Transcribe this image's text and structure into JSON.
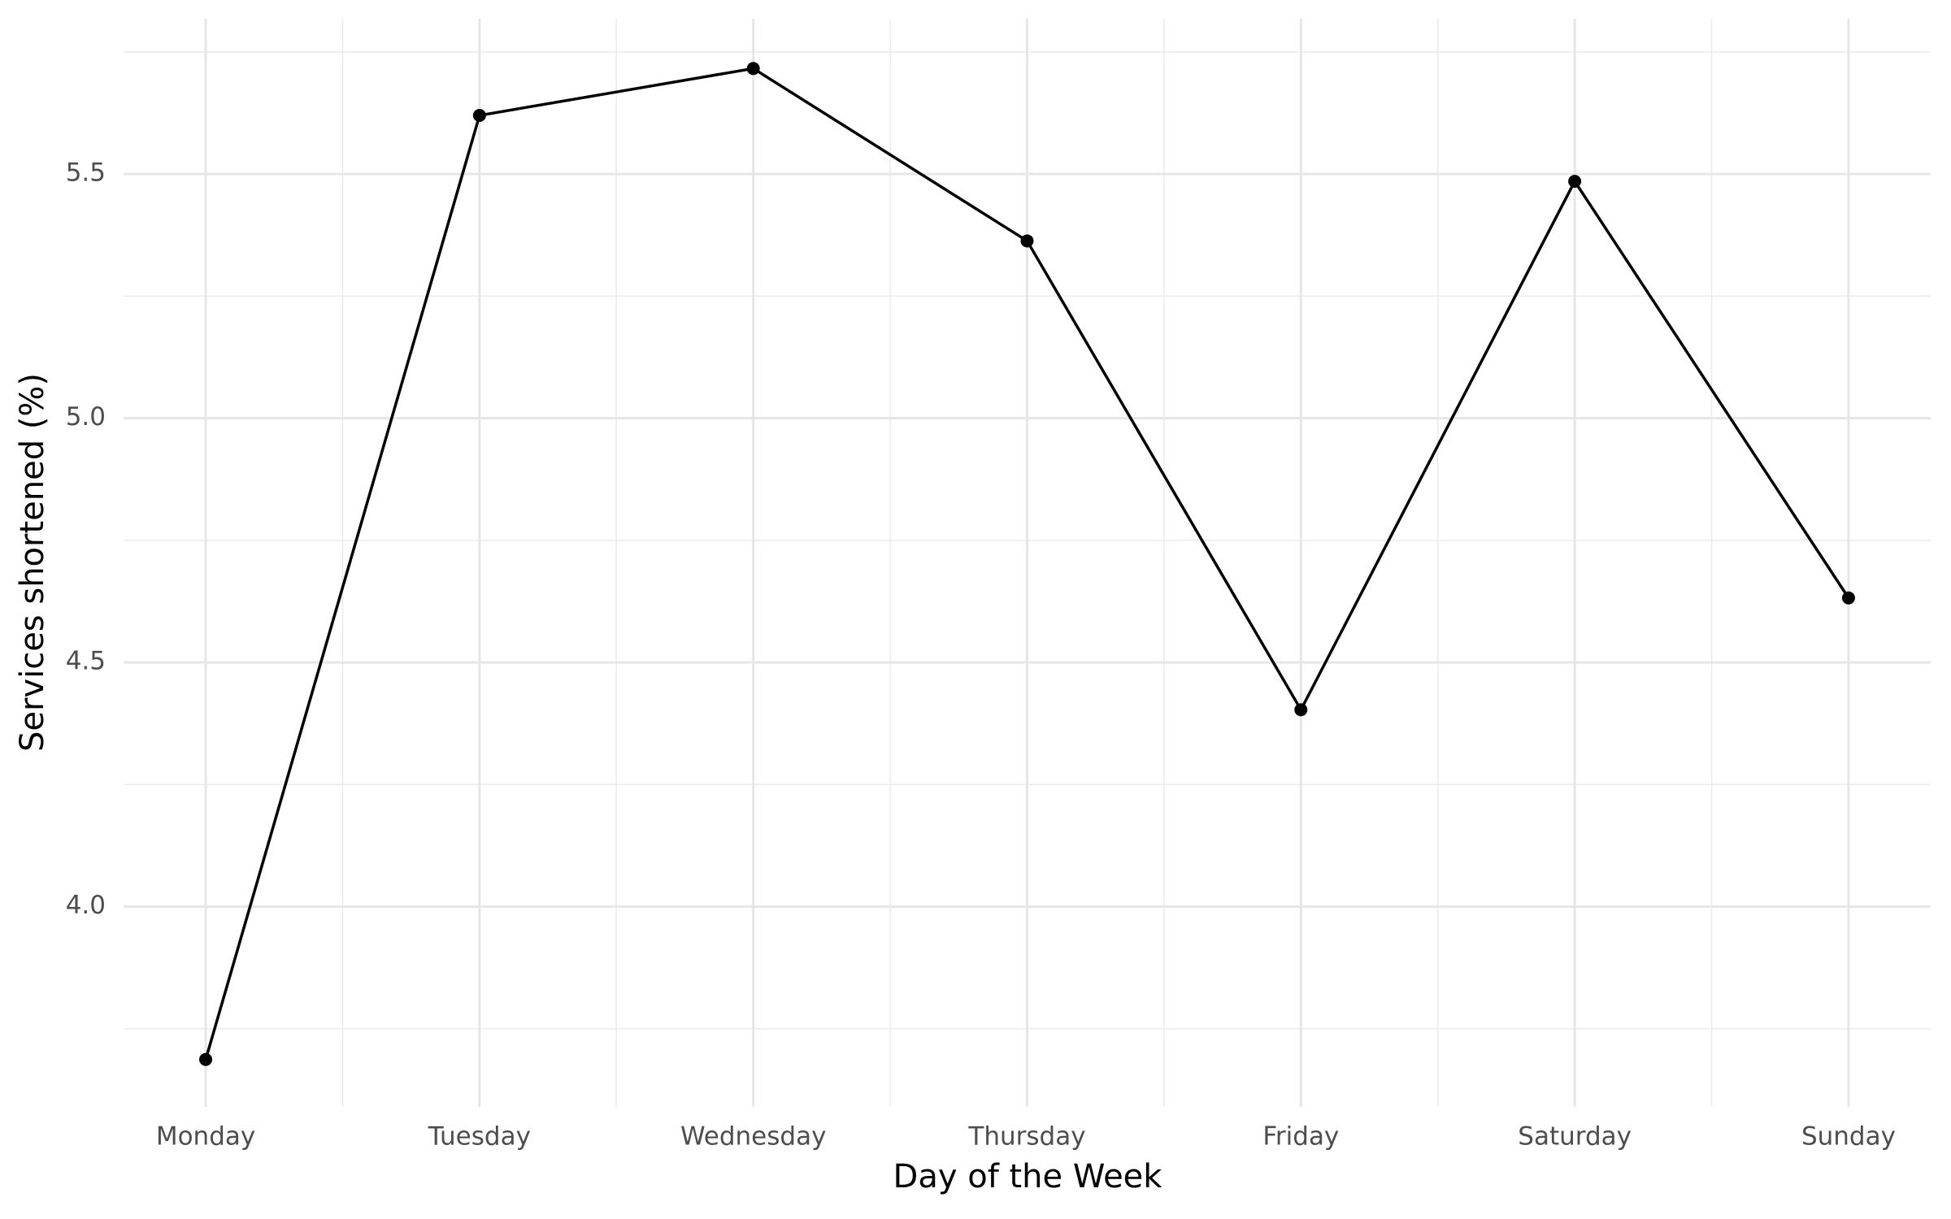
{
  "chart_data": {
    "type": "line",
    "x_label": "Day of the Week",
    "y_label": "Services shortened (%)",
    "categories": [
      "Monday",
      "Tuesday",
      "Wednesday",
      "Thursday",
      "Friday",
      "Saturday",
      "Sunday"
    ],
    "values": [
      3.687,
      5.62,
      5.716,
      5.363,
      4.403,
      5.485,
      4.632
    ],
    "color": "#000000",
    "ylim": [
      3.59,
      5.818
    ],
    "yticks": [
      {
        "value": 4,
        "label": "4.0"
      },
      4.5,
      {
        "value": 5,
        "label": "5.0"
      },
      5.5
    ],
    "grid": true,
    "minor_grid": true
  }
}
